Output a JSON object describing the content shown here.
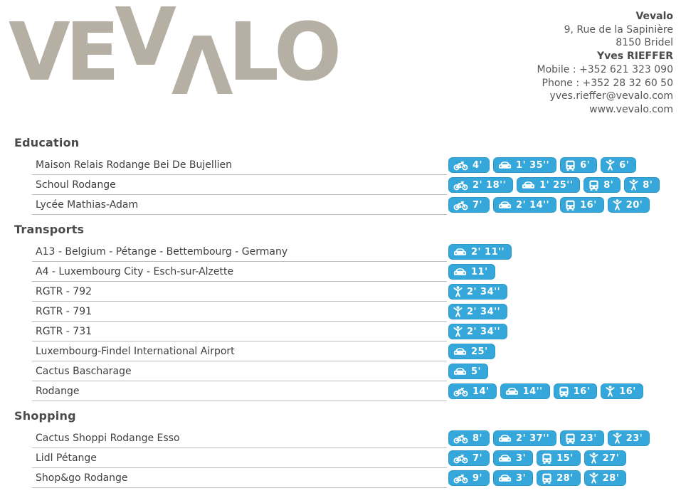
{
  "logo": {
    "text": "VEVALO",
    "letters": [
      "V",
      "E",
      "V",
      "Λ",
      "L",
      "O"
    ]
  },
  "contact": {
    "company": "Vevalo",
    "address_line1": "9, Rue de la Sapinière",
    "address_line2": "8150 Bridel",
    "person": "Yves RIEFFER",
    "mobile": "Mobile : +352 621 323 090",
    "phone": "Phone : +352 28 32 60 50",
    "email": "yves.rieffer@vevalo.com",
    "website": "www.vevalo.com"
  },
  "colors": {
    "badge": "#35a7da",
    "badgeBorder": "#2d99cb",
    "logo": "#b5afa4",
    "heading": "#4a4a4a",
    "text": "#3f3f3f",
    "line": "#bdbdbd",
    "contact": "#575757",
    "contactBold": "#4a4a4a"
  },
  "sections": [
    {
      "title": "Education",
      "rows": [
        {
          "name": "Maison Relais Rodange Bei De Bujellien",
          "badges": [
            {
              "icon": "bike",
              "value": "4'"
            },
            {
              "icon": "car",
              "value": "1' 35''"
            },
            {
              "icon": "bus",
              "value": "6'"
            },
            {
              "icon": "walk",
              "value": "6'"
            }
          ]
        },
        {
          "name": "Schoul Rodange",
          "badges": [
            {
              "icon": "bike",
              "value": "2' 18''"
            },
            {
              "icon": "car",
              "value": "1' 25''"
            },
            {
              "icon": "bus",
              "value": "8'"
            },
            {
              "icon": "walk",
              "value": "8'"
            }
          ]
        },
        {
          "name": "Lycée Mathias-Adam",
          "badges": [
            {
              "icon": "bike",
              "value": "7'"
            },
            {
              "icon": "car",
              "value": "2' 14''"
            },
            {
              "icon": "bus",
              "value": "16'"
            },
            {
              "icon": "walk",
              "value": "20'"
            }
          ]
        }
      ]
    },
    {
      "title": "Transports",
      "rows": [
        {
          "name": "A13 - Belgium - Pétange - Bettembourg - Germany",
          "badges": [
            {
              "icon": "car",
              "value": "2' 11''"
            }
          ]
        },
        {
          "name": "A4 - Luxembourg City - Esch-sur-Alzette",
          "badges": [
            {
              "icon": "car",
              "value": "11'"
            }
          ]
        },
        {
          "name": "RGTR - 792",
          "badges": [
            {
              "icon": "walk",
              "value": "2' 34''"
            }
          ]
        },
        {
          "name": "RGTR - 791",
          "badges": [
            {
              "icon": "walk",
              "value": "2' 34''"
            }
          ]
        },
        {
          "name": "RGTR - 731",
          "badges": [
            {
              "icon": "walk",
              "value": "2' 34''"
            }
          ]
        },
        {
          "name": "Luxembourg-Findel International Airport",
          "badges": [
            {
              "icon": "car",
              "value": "25'"
            }
          ]
        },
        {
          "name": "Cactus Bascharage",
          "badges": [
            {
              "icon": "car",
              "value": "5'"
            }
          ]
        },
        {
          "name": "Rodange",
          "badges": [
            {
              "icon": "bike",
              "value": "14'"
            },
            {
              "icon": "car",
              "value": "14''"
            },
            {
              "icon": "bus",
              "value": "16'"
            },
            {
              "icon": "walk",
              "value": "16'"
            }
          ]
        }
      ]
    },
    {
      "title": "Shopping",
      "rows": [
        {
          "name": "Cactus Shoppi Rodange Esso",
          "badges": [
            {
              "icon": "bike",
              "value": "8'"
            },
            {
              "icon": "car",
              "value": "2' 37''"
            },
            {
              "icon": "bus",
              "value": "23'"
            },
            {
              "icon": "walk",
              "value": "23'"
            }
          ]
        },
        {
          "name": "Lidl Pétange",
          "badges": [
            {
              "icon": "bike",
              "value": "7'"
            },
            {
              "icon": "car",
              "value": "3'"
            },
            {
              "icon": "bus",
              "value": "15'"
            },
            {
              "icon": "walk",
              "value": "27'"
            }
          ]
        },
        {
          "name": "Shop&go Rodange",
          "badges": [
            {
              "icon": "bike",
              "value": "9'"
            },
            {
              "icon": "car",
              "value": "3'"
            },
            {
              "icon": "bus",
              "value": "28'"
            },
            {
              "icon": "walk",
              "value": "28'"
            }
          ]
        }
      ]
    }
  ]
}
